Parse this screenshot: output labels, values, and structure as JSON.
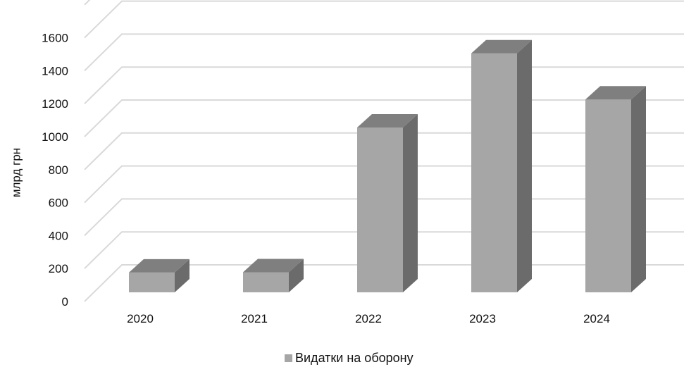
{
  "chart_data": {
    "type": "bar",
    "categories": [
      "2020",
      "2021",
      "2022",
      "2023",
      "2024"
    ],
    "series": [
      {
        "name": "Видатки на оборону",
        "values": [
          120,
          122,
          1000,
          1450,
          1170
        ],
        "color": "#a6a6a6",
        "side_color": "#6b6b6b",
        "top_color": "#7f7f7f"
      }
    ],
    "ylabel": "млрд грн",
    "xlabel": "",
    "ylim": [
      0,
      1800
    ],
    "yticks": [
      "0",
      "200",
      "400",
      "600",
      "800",
      "1000",
      "1200",
      "1400",
      "1600"
    ],
    "grid": true,
    "legend_position": "bottom",
    "style": "3d-column"
  }
}
